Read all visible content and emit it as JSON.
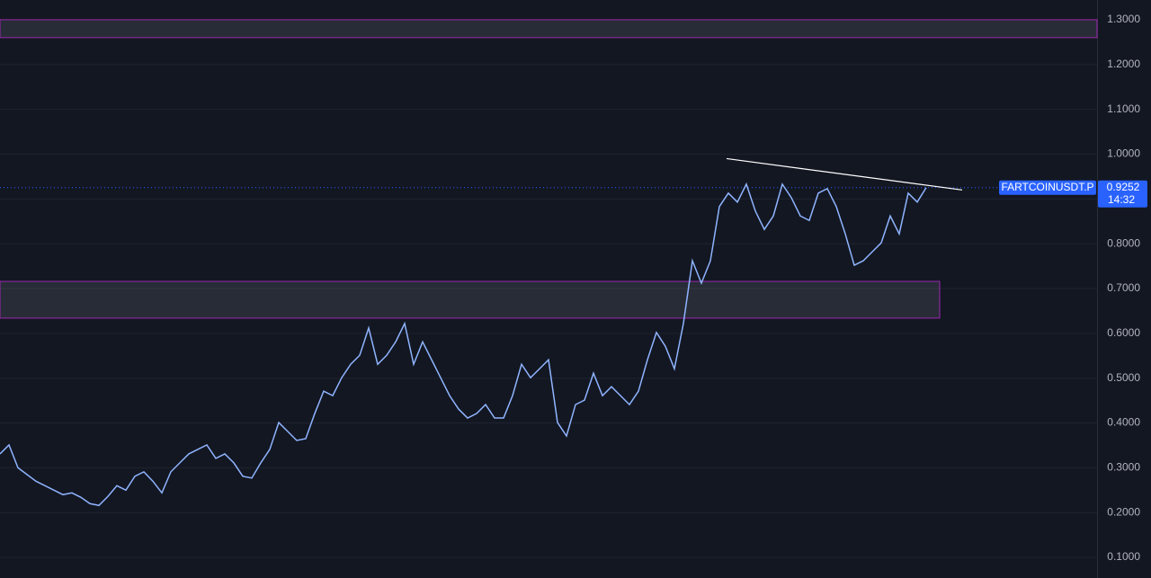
{
  "chart_data": {
    "type": "line",
    "symbol": "FARTCOINUSDT.P",
    "last_price": {
      "value": 0.9252,
      "label": "0.9252"
    },
    "countdown": "14:32",
    "color": "#8fb4ff",
    "values": [
      0.331,
      0.351,
      0.3,
      0.285,
      0.27,
      0.26,
      0.25,
      0.24,
      0.244,
      0.234,
      0.22,
      0.216,
      0.236,
      0.26,
      0.25,
      0.281,
      0.291,
      0.27,
      0.244,
      0.291,
      0.311,
      0.331,
      0.341,
      0.351,
      0.321,
      0.331,
      0.311,
      0.281,
      0.277,
      0.311,
      0.341,
      0.401,
      0.381,
      0.361,
      0.365,
      0.421,
      0.471,
      0.461,
      0.501,
      0.531,
      0.551,
      0.612,
      0.531,
      0.551,
      0.581,
      0.622,
      0.531,
      0.581,
      0.541,
      0.501,
      0.461,
      0.431,
      0.411,
      0.421,
      0.441,
      0.411,
      0.411,
      0.461,
      0.531,
      0.501,
      0.521,
      0.541,
      0.401,
      0.371,
      0.441,
      0.451,
      0.511,
      0.461,
      0.481,
      0.461,
      0.441,
      0.471,
      0.541,
      0.602,
      0.571,
      0.521,
      0.622,
      0.762,
      0.712,
      0.762,
      0.883,
      0.913,
      0.893,
      0.933,
      0.873,
      0.832,
      0.862,
      0.933,
      0.903,
      0.862,
      0.852,
      0.913,
      0.923,
      0.883,
      0.822,
      0.752,
      0.762,
      0.782,
      0.802,
      0.862,
      0.822,
      0.913,
      0.893,
      0.9252
    ],
    "zones": [
      {
        "ylim": [
          1.26,
          1.3
        ]
      },
      {
        "ylim": [
          0.634,
          0.716
        ],
        "x_end": 104.5
      }
    ],
    "trendline": {
      "x": [
        80.8,
        107
      ],
      "y": [
        0.99,
        0.92
      ]
    },
    "ylim": [
      0.054,
      1.344
    ],
    "yticks": [
      {
        "value": 0.1,
        "label": "0.1000"
      },
      {
        "value": 0.2,
        "label": "0.2000"
      },
      {
        "value": 0.3,
        "label": "0.3000"
      },
      {
        "value": 0.4,
        "label": "0.4000"
      },
      {
        "value": 0.5,
        "label": "0.5000"
      },
      {
        "value": 0.6,
        "label": "0.6000"
      },
      {
        "value": 0.7,
        "label": "0.7000"
      },
      {
        "value": 0.8,
        "label": "0.8000"
      },
      {
        "value": 0.9,
        "label": "0.9000"
      },
      {
        "value": 1.0,
        "label": "1.0000"
      },
      {
        "value": 1.1,
        "label": "1.1000"
      },
      {
        "value": 1.2,
        "label": "1.2000"
      },
      {
        "value": 1.3,
        "label": "1.3000"
      }
    ],
    "grid": true
  }
}
